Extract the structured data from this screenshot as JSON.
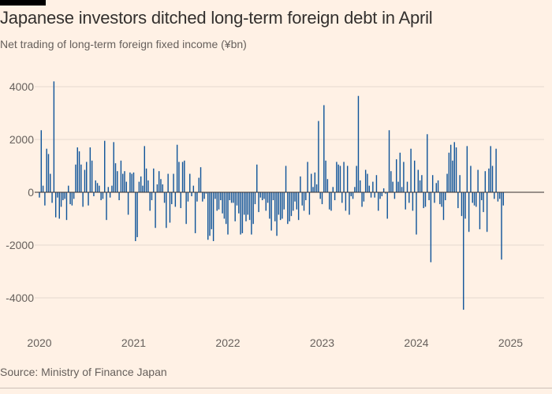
{
  "title": "Japanese investors ditched long-term foreign debt in April",
  "subtitle": "Net trading of long-term foreign fixed income (¥bn)",
  "source": "Source: Ministry of Finance Japan",
  "colors": {
    "background": "#FFF1E5",
    "bar": "#0F5499",
    "gridline": "#E6D9CE",
    "zeroline": "#33302E",
    "text": "#66605C"
  },
  "chart_data": {
    "type": "bar",
    "title": "Japanese investors ditched long-term foreign debt in April",
    "subtitle": "Net trading of long-term foreign fixed income (¥bn)",
    "xlabel": "",
    "ylabel": "¥bn",
    "ylim": [
      -5000,
      5000
    ],
    "yticks": [
      4000,
      2000,
      0,
      -2000,
      -4000
    ],
    "ytick_labels": [
      "4000",
      "2000",
      "0",
      "-2000",
      "-4000"
    ],
    "xticks": [
      "2020",
      "2021",
      "2022",
      "2023",
      "2024",
      "2025"
    ],
    "start_year": 2020,
    "frequency": "weekly",
    "grid": true,
    "series": [
      {
        "name": "Net trading of long-term foreign fixed income",
        "values": [
          -200,
          2350,
          250,
          -500,
          1650,
          1450,
          700,
          -400,
          4200,
          -950,
          -200,
          -1000,
          -550,
          -300,
          -250,
          -1050,
          250,
          -450,
          -500,
          -250,
          1050,
          1700,
          1550,
          1050,
          -550,
          850,
          1150,
          -500,
          1700,
          1200,
          -150,
          450,
          350,
          250,
          -300,
          -250,
          1950,
          -1050,
          200,
          -200,
          250,
          1900,
          1100,
          800,
          -300,
          1200,
          700,
          800,
          400,
          -850,
          750,
          700,
          750,
          -1850,
          -1700,
          400,
          600,
          250,
          1750,
          900,
          450,
          -700,
          -300,
          900,
          -1350,
          300,
          800,
          500,
          300,
          -400,
          -1350,
          700,
          -1150,
          -450,
          700,
          -550,
          1800,
          1150,
          -600,
          1150,
          1200,
          -1200,
          -350,
          700,
          -150,
          250,
          -1550,
          -350,
          550,
          950,
          -350,
          -250,
          -50,
          -1800,
          -1650,
          -1400,
          -1850,
          -250,
          -700,
          -650,
          -300,
          -800,
          -1000,
          -1200,
          -1600,
          -300,
          -400,
          -400,
          -1100,
          -500,
          -800,
          -1600,
          -1550,
          -850,
          -1100,
          -850,
          -1050,
          -1600,
          -1200,
          -450,
          1050,
          -750,
          -200,
          -300,
          -250,
          -700,
          -400,
          -1000,
          -1450,
          -300,
          -1100,
          -1650,
          -850,
          -1050,
          -1000,
          -650,
          1000,
          -1200,
          -1100,
          -900,
          -700,
          -350,
          -650,
          -1050,
          600,
          -500,
          -700,
          -300,
          1150,
          -850,
          700,
          200,
          750,
          300,
          2700,
          -250,
          -450,
          3300,
          1200,
          500,
          -650,
          -700,
          200,
          -300,
          1150,
          1050,
          1000,
          -400,
          1150,
          -700,
          1000,
          -850,
          -150,
          -250,
          200,
          1000,
          3650,
          450,
          -550,
          -350,
          850,
          700,
          250,
          -200,
          400,
          -200,
          650,
          -700,
          -250,
          -150,
          150,
          -50,
          -1000,
          2350,
          800,
          400,
          -250,
          1250,
          400,
          1500,
          200,
          1150,
          -650,
          400,
          -400,
          1650,
          -700,
          1200,
          -1600,
          850,
          450,
          650,
          -600,
          -550,
          2200,
          -300,
          -2650,
          650,
          -400,
          350,
          450,
          -450,
          -550,
          -1050,
          -300,
          700,
          1500,
          1800,
          1200,
          1900,
          1700,
          -600,
          650,
          -900,
          -4450,
          -1000,
          1750,
          -1500,
          1000,
          -400,
          -500,
          -550,
          850,
          -1400,
          -300,
          -750,
          800,
          -1500,
          900,
          1750,
          1000,
          -250,
          1650,
          -350,
          -250,
          -2550,
          -500
        ]
      }
    ]
  }
}
